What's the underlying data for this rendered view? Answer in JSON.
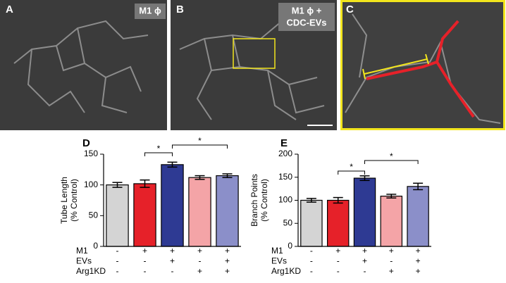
{
  "images": [
    {
      "label": "A",
      "caption": [
        "M1 ϕ"
      ]
    },
    {
      "label": "B",
      "caption": [
        "M1 ϕ +",
        "CDC-EVs"
      ]
    },
    {
      "label": "C"
    }
  ],
  "chart_data": [
    {
      "type": "bar",
      "panel_label": "D",
      "ylabel": [
        "Tube Length",
        "(% Control)"
      ],
      "values": [
        100,
        102,
        133,
        112,
        115
      ],
      "errors": [
        4,
        6,
        4,
        3,
        3
      ],
      "colors": [
        "#d4d4d4",
        "#e62129",
        "#2e3a93",
        "#f4a4a7",
        "#8b8fc9"
      ],
      "ylim": [
        0,
        150
      ],
      "yticks": [
        0,
        50,
        100,
        150
      ],
      "annotations": [
        {
          "text": "*"
        },
        {
          "text": "*"
        }
      ],
      "conditions": [
        {
          "name": "M1",
          "marks": [
            "-",
            "+",
            "+",
            "+",
            "+"
          ]
        },
        {
          "name": "EVs",
          "marks": [
            "-",
            "-",
            "+",
            "-",
            "+"
          ]
        },
        {
          "name": "Arg1KD",
          "marks": [
            "-",
            "-",
            "-",
            "+",
            "+"
          ]
        }
      ]
    },
    {
      "type": "bar",
      "panel_label": "E",
      "ylabel": [
        "Branch Points",
        "(% Control)"
      ],
      "values": [
        100,
        100,
        148,
        109,
        130
      ],
      "errors": [
        4,
        6,
        5,
        4,
        7
      ],
      "colors": [
        "#d4d4d4",
        "#e62129",
        "#2e3a93",
        "#f4a4a7",
        "#8b8fc9"
      ],
      "ylim": [
        0,
        200
      ],
      "yticks": [
        0,
        50,
        100,
        150,
        200
      ],
      "annotations": [
        {
          "text": "*"
        },
        {
          "text": "*"
        }
      ],
      "conditions": [
        {
          "name": "M1",
          "marks": [
            "-",
            "+",
            "+",
            "+",
            "+"
          ]
        },
        {
          "name": "EVs",
          "marks": [
            "-",
            "-",
            "+",
            "-",
            "+"
          ]
        },
        {
          "name": "Arg1KD",
          "marks": [
            "-",
            "-",
            "-",
            "+",
            "+"
          ]
        }
      ]
    }
  ]
}
